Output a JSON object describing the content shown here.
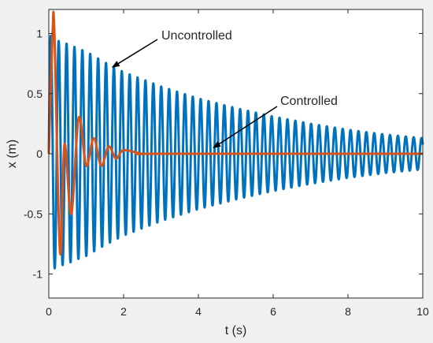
{
  "chart_data": {
    "type": "line",
    "title": "",
    "xlabel": "t (s)",
    "ylabel": "x (m)",
    "xlim": [
      0,
      10
    ],
    "ylim": [
      -1.2,
      1.2
    ],
    "xticks": [
      0,
      2,
      4,
      6,
      8,
      10
    ],
    "yticks": [
      -1,
      -0.5,
      0,
      0.5,
      1
    ],
    "xtick_labels": [
      "0",
      "2",
      "4",
      "6",
      "8",
      "10"
    ],
    "ytick_labels": [
      "-1",
      "-0.5",
      "0",
      "0.5",
      "1"
    ],
    "grid": false,
    "legend": "none",
    "series": [
      {
        "color": "#0072BD",
        "description": "lightly damped oscillation, ~4.7 Hz",
        "x": [
          0,
          0.11,
          0.32,
          0.53,
          0.75,
          1.0,
          1.5,
          2.0,
          3.0,
          4.0,
          5.0,
          6.0,
          7.0,
          8.0,
          9.0,
          10.0
        ],
        "envelope": [
          1.0,
          0.96,
          0.93,
          0.91,
          0.88,
          0.85,
          0.76,
          0.68,
          0.56,
          0.46,
          0.38,
          0.31,
          0.25,
          0.2,
          0.16,
          0.13
        ]
      },
      {
        "color": "#D95319",
        "description": "heavily damped oscillation, settles by ~3 s",
        "x": [
          0,
          0.1,
          0.15,
          0.3,
          0.42,
          0.6,
          0.8,
          1.0,
          1.2,
          1.4,
          1.6,
          1.8,
          2.0,
          2.5,
          3.0,
          10.0
        ],
        "y": [
          0,
          1.0,
          1.0,
          -0.82,
          0.08,
          -0.5,
          0.3,
          -0.1,
          0.13,
          -0.1,
          0.06,
          -0.04,
          0.03,
          0.0,
          0.0,
          0.0
        ]
      }
    ],
    "annotations": [
      {
        "text": "Uncontrolled",
        "arrow_to": [
          1.7,
          0.72
        ]
      },
      {
        "text": "Controlled",
        "arrow_to": [
          4.4,
          0.05
        ]
      }
    ]
  }
}
